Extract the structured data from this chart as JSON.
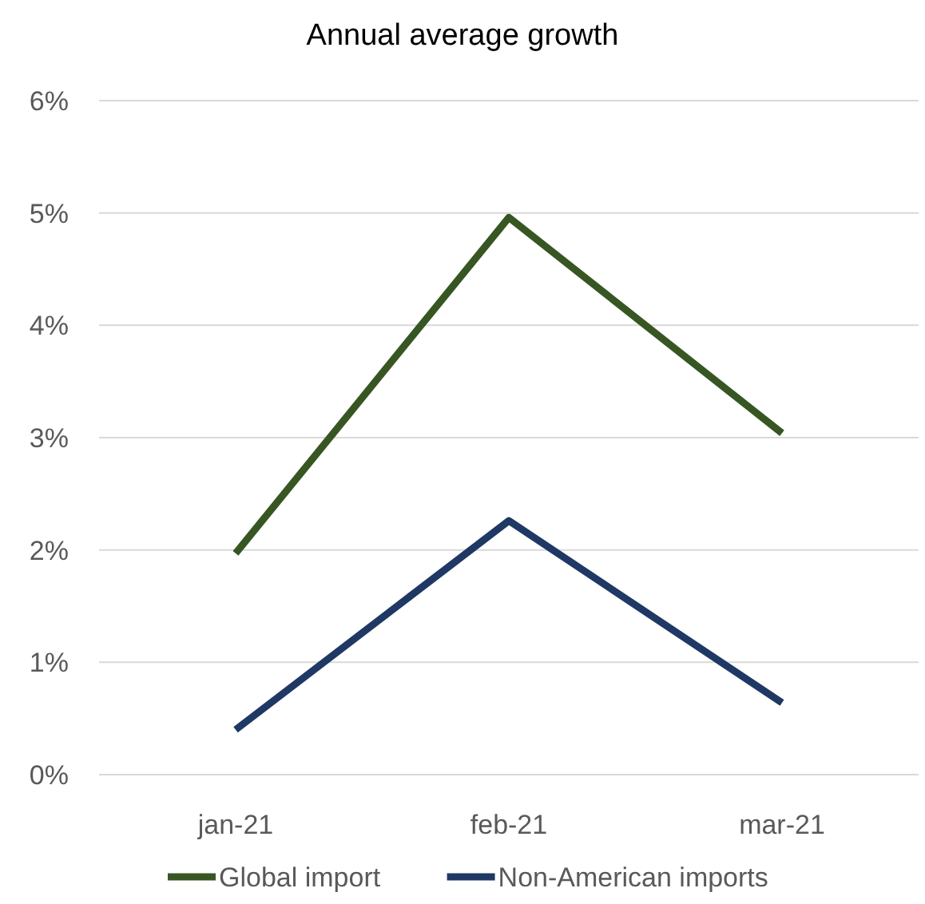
{
  "chart_data": {
    "type": "line",
    "title": "Annual average growth",
    "categories": [
      "jan-21",
      "feb-21",
      "mar-21"
    ],
    "series": [
      {
        "name": "Global import",
        "color": "#375623",
        "values": [
          1.97,
          4.96,
          3.04
        ]
      },
      {
        "name": "Non-American imports",
        "color": "#1f3864",
        "values": [
          0.4,
          2.26,
          0.64
        ]
      }
    ],
    "ylim": [
      0,
      6
    ],
    "yticks": [
      {
        "value": 0,
        "label": "0%"
      },
      {
        "value": 1,
        "label": "1%"
      },
      {
        "value": 2,
        "label": "2%"
      },
      {
        "value": 3,
        "label": "3%"
      },
      {
        "value": 4,
        "label": "4%"
      },
      {
        "value": 5,
        "label": "5%"
      },
      {
        "value": 6,
        "label": "6%"
      }
    ],
    "grid": "y",
    "legend": "bottom",
    "marker": "none",
    "line_style": "solid"
  }
}
